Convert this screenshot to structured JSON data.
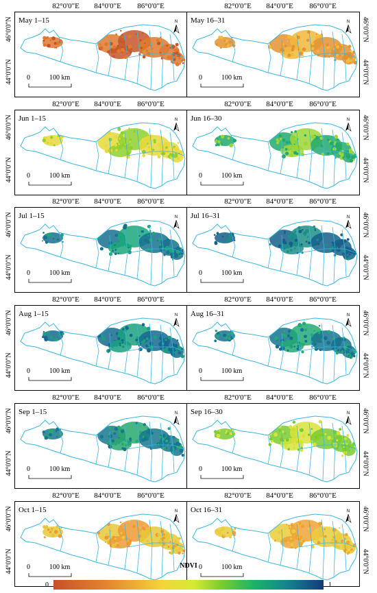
{
  "longitude_labels": [
    "82°0'0\"E",
    "84°0'0\"E",
    "86°0'0\"E"
  ],
  "latitude_labels": [
    "46°0'0\"N",
    "44°0'0\"N"
  ],
  "scale_bar": {
    "zero": "0",
    "distance": "100 km"
  },
  "north_arrow": {
    "letter": "N",
    "icon": "north-arrow-icon"
  },
  "panels": [
    {
      "title": "May 1–15",
      "tone": "#e0792e",
      "accent": "#c4572a"
    },
    {
      "title": "May 16–31",
      "tone": "#e39331",
      "accent": "#f2b93a"
    },
    {
      "title": "Jun 1–15",
      "tone": "#e9d93b",
      "accent": "#8fd12e"
    },
    {
      "title": "Jun 16–30",
      "tone": "#21a96f",
      "accent": "#9bd637"
    },
    {
      "title": "Jul 1–15",
      "tone": "#17718f",
      "accent": "#1aa77a"
    },
    {
      "title": "Jul 16–31",
      "tone": "#155f8a",
      "accent": "#1c8f86"
    },
    {
      "title": "Aug 1–15",
      "tone": "#156890",
      "accent": "#1aa07e"
    },
    {
      "title": "Aug 16–31",
      "tone": "#16728f",
      "accent": "#22aa72"
    },
    {
      "title": "Sep 1–15",
      "tone": "#16788e",
      "accent": "#2aa86e"
    },
    {
      "title": "Sep 16–30",
      "tone": "#7acb30",
      "accent": "#d8e33a"
    },
    {
      "title": "Oct 1–15",
      "tone": "#e8c83a",
      "accent": "#f09a36"
    },
    {
      "title": "Oct 16–31",
      "tone": "#e9cd3c",
      "accent": "#eea336"
    }
  ],
  "legend": {
    "title": "NDVI",
    "min": "0",
    "max": "1"
  },
  "colors": {
    "boundary": "#39b6e3",
    "ramp": [
      "#c8502a",
      "#e3862f",
      "#f4d43a",
      "#7ccd2d",
      "#1bb566",
      "#15868f",
      "#143a7c"
    ]
  }
}
